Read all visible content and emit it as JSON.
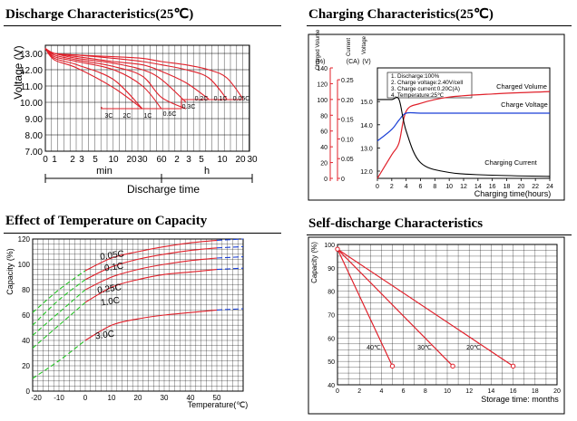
{
  "discharge": {
    "title": "Discharge Characteristics(25℃)",
    "ylabel": "Voltage (V)",
    "xlabel": "Discharge time",
    "unit_min": "min",
    "unit_h": "h",
    "y_ticks": [
      "13.00",
      "12.00",
      "11.00",
      "10.00",
      "9.00",
      "8.00",
      "7.00"
    ],
    "x_ticks": [
      "0",
      "1",
      "2",
      "3",
      "5",
      "10",
      "20",
      "30",
      "60",
      "2",
      "3",
      "5",
      "10",
      "20",
      "30"
    ],
    "labels": [
      "3C",
      "2C",
      "1C",
      "0.6C",
      "0.3C",
      "0.2C",
      "0.1C",
      "0.05C"
    ]
  },
  "charging": {
    "title": "Charging Characteristics(25℃)",
    "xlabel": "Charging time(hours)",
    "axis_headers": {
      "volume": "Charged Volume",
      "volume_unit": "(%)",
      "current": "Current",
      "current_unit": "(CA)",
      "voltage": "Voltage",
      "voltage_unit": "(V)"
    },
    "volume_ticks": [
      "140",
      "120",
      "100",
      "80",
      "60",
      "40",
      "20",
      "0"
    ],
    "current_ticks": [
      "0.25",
      "0.20",
      "0.15",
      "0.10",
      "0.05",
      "0"
    ],
    "voltage_ticks": [
      "15.0",
      "14.0",
      "13.0",
      "12.0"
    ],
    "x_ticks": [
      "0",
      "2",
      "4",
      "6",
      "8",
      "10",
      "12",
      "14",
      "16",
      "18",
      "20",
      "22",
      "24"
    ],
    "notes": [
      "1. Discharge:100%",
      "2. Charge voltage:2.40V/cell",
      "3. Charge current:0.20C(A)",
      "4. Temperature:25℃"
    ],
    "series_labels": {
      "volume": "Charged Volume",
      "voltage": "Charge Voltage",
      "current": "Charging Current"
    },
    "colors": {
      "volume": "#e0202a",
      "voltage": "#1a3fd6",
      "current": "#000000"
    }
  },
  "temperature": {
    "title": "Effect of Temperature on Capacity",
    "ylabel": "Capacity (%)",
    "xlabel": "Temperature(℃)",
    "y_ticks": [
      "120",
      "100",
      "80",
      "60",
      "40",
      "20",
      "0"
    ],
    "x_ticks": [
      "-20",
      "-10",
      "0",
      "10",
      "20",
      "30",
      "40",
      "50"
    ],
    "curve_labels": [
      "0.05C",
      "0.1C",
      "0.25C",
      "1.0C",
      "3.0C"
    ],
    "colors": {
      "low": "#22c322",
      "mid": "#e0202a",
      "high": "#1a3fd6"
    }
  },
  "selfdischarge": {
    "title": "Self-discharge Characteristics",
    "ylabel": "Capacity (%)",
    "xlabel": "Storage time: months",
    "y_ticks": [
      "100",
      "90",
      "80",
      "70",
      "60",
      "50",
      "40"
    ],
    "x_ticks": [
      "0",
      "2",
      "4",
      "6",
      "8",
      "10",
      "12",
      "14",
      "16",
      "18",
      "20"
    ],
    "line_labels": [
      "40℃",
      "30℃",
      "20℃"
    ]
  },
  "chart_data": [
    {
      "type": "line",
      "title": "Discharge Characteristics(25℃)",
      "xlabel": "Discharge time",
      "ylabel": "Voltage (V)",
      "ylim": [
        7.0,
        13.5
      ],
      "x": [
        "1min",
        "3min",
        "10min",
        "30min",
        "1h",
        "2h",
        "5h",
        "10h",
        "20h"
      ],
      "series": [
        {
          "name": "3C",
          "values": [
            12.6,
            12.1,
            10.9,
            9.6,
            null,
            null,
            null,
            null,
            null
          ]
        },
        {
          "name": "2C",
          "values": [
            12.7,
            12.3,
            11.4,
            9.6,
            null,
            null,
            null,
            null,
            null
          ]
        },
        {
          "name": "1C",
          "values": [
            12.8,
            12.5,
            12.0,
            11.0,
            9.6,
            null,
            null,
            null,
            null
          ]
        },
        {
          "name": "0.6C",
          "values": [
            12.9,
            12.6,
            12.2,
            11.6,
            10.3,
            9.6,
            null,
            null,
            null
          ]
        },
        {
          "name": "0.3C",
          "values": [
            13.0,
            12.7,
            12.4,
            12.0,
            11.4,
            10.0,
            null,
            null,
            null
          ]
        },
        {
          "name": "0.2C",
          "values": [
            13.0,
            12.8,
            12.5,
            12.3,
            11.9,
            11.2,
            10.2,
            null,
            null
          ]
        },
        {
          "name": "0.1C",
          "values": [
            13.0,
            12.9,
            12.7,
            12.5,
            12.3,
            12.0,
            11.5,
            10.2,
            null
          ]
        },
        {
          "name": "0.05C",
          "values": [
            13.0,
            12.9,
            12.8,
            12.7,
            12.5,
            12.3,
            12.0,
            11.5,
            10.2
          ]
        }
      ]
    },
    {
      "type": "line",
      "title": "Charging Characteristics(25℃)",
      "xlabel": "Charging time(hours)",
      "x": [
        0,
        2,
        3,
        4,
        6,
        10,
        16,
        24
      ],
      "series": [
        {
          "name": "Charged Volume",
          "unit": "%",
          "values": [
            0,
            30,
            45,
            85,
            95,
            103,
            107,
            110
          ]
        },
        {
          "name": "Charge Voltage",
          "unit": "V",
          "values": [
            13.3,
            13.8,
            14.2,
            14.5,
            14.5,
            14.5,
            14.5,
            14.5
          ]
        },
        {
          "name": "Charging Current",
          "unit": "CA",
          "values": [
            0.2,
            0.2,
            0.2,
            0.12,
            0.04,
            0.015,
            0.008,
            0.005
          ]
        }
      ]
    },
    {
      "type": "line",
      "title": "Effect of Temperature on Capacity",
      "xlabel": "Temperature(℃)",
      "ylabel": "Capacity (%)",
      "ylim": [
        0,
        120
      ],
      "x": [
        -20,
        -10,
        0,
        10,
        20,
        30,
        40,
        50,
        60
      ],
      "series": [
        {
          "name": "0.05C",
          "values": [
            62,
            80,
            95,
            105,
            110,
            114,
            117,
            119,
            120
          ]
        },
        {
          "name": "0.1C",
          "values": [
            52,
            72,
            88,
            98,
            104,
            108,
            111,
            113,
            114
          ]
        },
        {
          "name": "0.25C",
          "values": [
            44,
            62,
            80,
            90,
            96,
            100,
            103,
            105,
            106
          ]
        },
        {
          "name": "1.0C",
          "values": [
            34,
            52,
            70,
            82,
            88,
            92,
            94,
            96,
            97
          ]
        },
        {
          "name": "3.0C",
          "values": [
            10,
            24,
            40,
            52,
            57,
            60,
            62,
            64,
            65
          ]
        }
      ]
    },
    {
      "type": "line",
      "title": "Self-discharge Characteristics",
      "xlabel": "Storage time: months",
      "ylabel": "Capacity (%)",
      "ylim": [
        40,
        100
      ],
      "series": [
        {
          "name": "40℃",
          "x": [
            0,
            5
          ],
          "values": [
            98,
            48
          ]
        },
        {
          "name": "30℃",
          "x": [
            0,
            10.5
          ],
          "values": [
            98,
            48
          ]
        },
        {
          "name": "20℃",
          "x": [
            0,
            16
          ],
          "values": [
            98,
            48
          ]
        }
      ]
    }
  ]
}
